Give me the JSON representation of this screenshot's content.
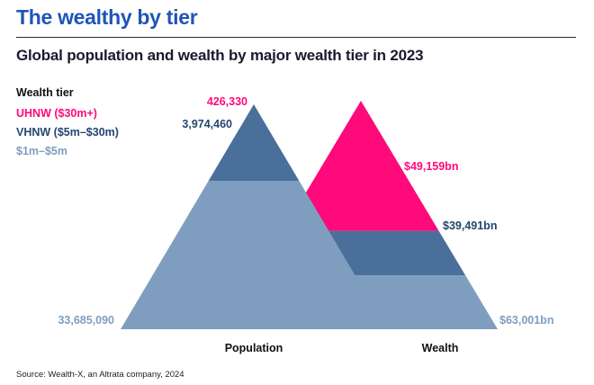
{
  "header": {
    "title": "The wealthy by tier",
    "subtitle": "Global population and wealth by major wealth tier in 2023"
  },
  "legend": {
    "title": "Wealth tier",
    "items": [
      {
        "label": "UHNW ($30m+)",
        "color": "#ff0a7a"
      },
      {
        "label": "VHNW ($5m–$30m)",
        "color": "#325a8c"
      },
      {
        "label": "$1m–$5m",
        "color": "#7f9ebf"
      }
    ]
  },
  "chart_data": {
    "type": "area",
    "categories": [
      "Population",
      "Wealth"
    ],
    "series": [
      {
        "name": "UHNW ($30m+)",
        "values": [
          426330,
          49159
        ],
        "labels": [
          "426,330",
          "$49,159bn"
        ]
      },
      {
        "name": "VHNW ($5m–$30m)",
        "values": [
          3974460,
          39491
        ],
        "labels": [
          "3,974,460",
          "$39,491bn"
        ]
      },
      {
        "name": "$1m–$5m",
        "values": [
          33685090,
          63001
        ],
        "labels": [
          "33,685,090",
          "$63,001bn"
        ]
      }
    ],
    "units": [
      "people",
      "$bn"
    ]
  },
  "colors": {
    "uhnw": "#ff0a7a",
    "vhnw": "#4a6f9a",
    "base": "#7f9ebf",
    "title": "#1f55b8"
  },
  "source": "Source: Wealth-X, an Altrata company, 2024"
}
